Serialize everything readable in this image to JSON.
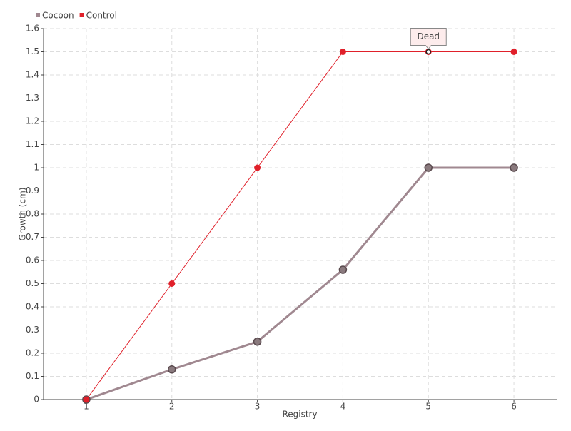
{
  "chart_data": {
    "type": "line",
    "x_label": "Registry",
    "y_label": "Growth (cm)",
    "x": [
      1,
      2,
      3,
      4,
      5,
      6
    ],
    "xlim": [
      0.5,
      6.5
    ],
    "xticks": [
      1,
      2,
      3,
      4,
      5,
      6
    ],
    "ylim": [
      0,
      1.6
    ],
    "yticks": [
      0,
      0.1,
      0.2,
      0.3,
      0.4,
      0.5,
      0.6,
      0.7,
      0.8,
      0.9,
      1,
      1.1,
      1.2,
      1.3,
      1.4,
      1.5,
      1.6
    ],
    "grid": true,
    "legend": "top-left",
    "series": [
      {
        "name": "Cocoon",
        "color": "#a08890",
        "values": [
          0,
          0.13,
          0.25,
          0.56,
          1,
          1
        ]
      },
      {
        "name": "Control",
        "color": "#e0202a",
        "values": [
          0,
          0.5,
          1,
          1.5,
          1.5,
          1.5
        ]
      }
    ],
    "annotations": [
      {
        "text": "Dead",
        "x": 5,
        "y": 1.5
      }
    ]
  }
}
